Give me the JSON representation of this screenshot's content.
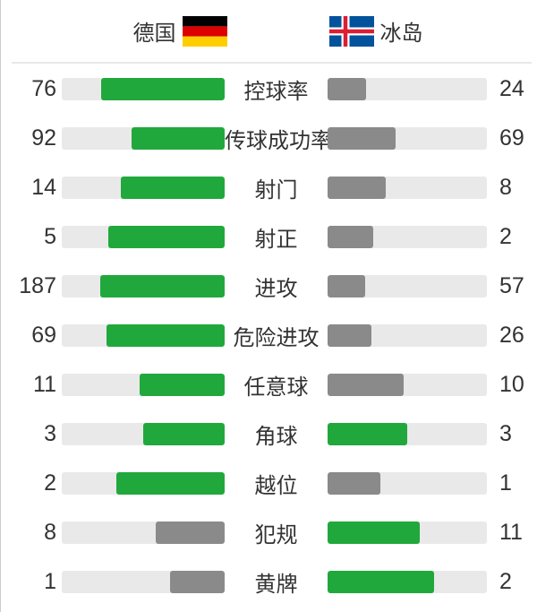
{
  "header": {
    "home": {
      "name": "德国",
      "flag_icon": "germany-flag"
    },
    "away": {
      "name": "冰岛",
      "flag_icon": "iceland-flag"
    }
  },
  "colors": {
    "win_bar": "#21a83c",
    "lose_bar": "#8a8a8a",
    "track": "#e9e9e9",
    "text": "#333333",
    "divider": "#e8e8e8",
    "germany_flag": [
      "#000000",
      "#dd0000",
      "#ffce00"
    ],
    "iceland_flag": {
      "field": "#02529c",
      "cross": "#ffffff",
      "inner_cross": "#dc1e35"
    }
  },
  "chart_data": {
    "type": "bar",
    "orientation": "horizontal-paired",
    "categories": [
      "控球率",
      "传球成功率",
      "射门",
      "射正",
      "进攻",
      "危险进攻",
      "任意球",
      "角球",
      "越位",
      "犯规",
      "黄牌"
    ],
    "series": [
      {
        "name": "德国",
        "values": [
          76,
          92,
          14,
          5,
          187,
          69,
          11,
          3,
          2,
          8,
          1
        ]
      },
      {
        "name": "冰岛",
        "values": [
          24,
          69,
          8,
          2,
          57,
          26,
          10,
          3,
          1,
          11,
          2
        ]
      }
    ],
    "bar_width_rule": "value / (home + away) share of track",
    "color_rule": "higher value green, lower gray, tie both green",
    "legend_position": "top"
  }
}
